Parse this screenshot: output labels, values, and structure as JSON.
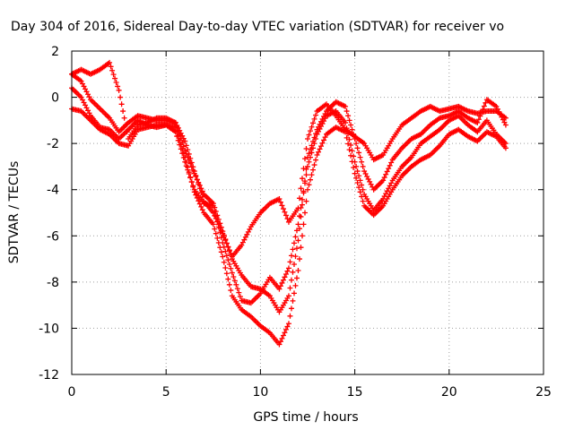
{
  "chart_data": {
    "type": "scatter",
    "title": "Day 304 of 2016, Sidereal Day-to-day VTEC variation (SDTVAR) for receiver vo",
    "xlabel": "GPS time / hours",
    "ylabel": "SDTVAR / TECUs",
    "xlim": [
      0,
      25
    ],
    "ylim": [
      -12,
      2
    ],
    "xticks": [
      0,
      5,
      10,
      15,
      20,
      25
    ],
    "xtick_labels": [
      "0",
      "5",
      "10",
      "15",
      "20",
      "25"
    ],
    "yticks": [
      -12,
      -10,
      -8,
      -6,
      -4,
      -2,
      0,
      2
    ],
    "ytick_labels": [
      "-12",
      "-10",
      "-8",
      "-6",
      "-4",
      "-2",
      "0",
      "2"
    ],
    "grid": true,
    "marker": "plus",
    "series": [
      {
        "color": "#ff0000",
        "x": [
          0.0,
          0.5,
          1.0,
          1.5,
          2.0,
          2.5,
          3.0,
          3.5,
          4.0,
          4.5,
          5.0,
          5.5,
          6.0,
          6.5,
          7.0,
          7.5,
          8.0,
          8.5,
          9.0,
          9.5,
          10.0,
          10.5,
          11.0,
          11.5,
          12.0,
          12.5,
          13.0,
          13.5,
          14.0,
          14.5,
          15.0,
          15.5,
          16.0,
          16.5,
          17.0,
          17.5,
          18.0,
          18.5,
          19.0,
          19.5,
          20.0,
          20.5,
          21.0,
          21.5,
          22.0,
          22.5,
          23.0
        ],
        "y": [
          0.4,
          0.0,
          -0.8,
          -1.3,
          -1.4,
          -1.8,
          -1.4,
          -1.0,
          -1.2,
          -1.3,
          -1.2,
          -1.5,
          -2.8,
          -4.0,
          -4.6,
          -4.7,
          -6.3,
          -7.6,
          -8.8,
          -8.9,
          -8.5,
          -7.8,
          -8.3,
          -7.4,
          -5.5,
          -3.0,
          -1.6,
          -0.8,
          -0.6,
          -1.1,
          -2.8,
          -4.2,
          -4.9,
          -4.4,
          -3.6,
          -3.0,
          -2.6,
          -2.0,
          -1.7,
          -1.4,
          -1.0,
          -0.8,
          -1.2,
          -1.5,
          -1.0,
          -1.6,
          -2.0
        ]
      },
      {
        "color": "#ff0000",
        "x": [
          0.0,
          0.5,
          1.0,
          1.5,
          2.0,
          2.5,
          3.0,
          3.5,
          4.0,
          4.5,
          5.0,
          5.5,
          6.0,
          6.5,
          7.0,
          7.5,
          8.0,
          8.5,
          9.0,
          9.5,
          10.0,
          10.5,
          11.0,
          11.5,
          12.0,
          12.5,
          13.0,
          13.5,
          14.0,
          14.5,
          15.0,
          15.5,
          16.0,
          16.5,
          17.0,
          17.5,
          18.0,
          18.5,
          19.0,
          19.5,
          20.0,
          20.5,
          21.0,
          21.5,
          22.0,
          22.5,
          23.0
        ],
        "y": [
          1.0,
          1.2,
          1.0,
          1.2,
          1.5,
          0.3,
          -1.8,
          -1.2,
          -1.1,
          -0.9,
          -0.9,
          -1.1,
          -2.3,
          -3.3,
          -4.2,
          -4.6,
          -5.8,
          -7.0,
          -7.7,
          -8.2,
          -8.3,
          -8.6,
          -9.3,
          -8.6,
          -6.2,
          -2.6,
          -1.4,
          -0.6,
          -0.2,
          -0.4,
          -1.8,
          -3.2,
          -4.0,
          -3.6,
          -2.7,
          -2.2,
          -1.8,
          -1.6,
          -1.2,
          -0.9,
          -0.8,
          -0.6,
          -0.9,
          -1.1,
          -0.1,
          -0.4,
          -1.2
        ]
      },
      {
        "color": "#ff0000",
        "x": [
          0.0,
          0.5,
          1.0,
          1.5,
          2.0,
          2.5,
          3.0,
          3.5,
          4.0,
          4.5,
          5.0,
          5.5,
          6.0,
          6.5,
          7.0,
          7.5,
          8.0,
          8.5,
          9.0,
          9.5,
          10.0,
          10.5,
          11.0,
          11.5,
          12.0,
          12.5,
          13.0,
          13.5,
          14.0,
          14.5,
          15.0,
          15.5,
          16.0,
          16.5,
          17.0,
          17.5,
          18.0,
          18.5,
          19.0,
          19.5,
          20.0,
          20.5,
          21.0,
          21.5,
          22.0,
          22.5,
          23.0
        ],
        "y": [
          -0.5,
          -0.6,
          -1.0,
          -1.4,
          -1.6,
          -2.0,
          -2.1,
          -1.4,
          -1.3,
          -1.2,
          -1.2,
          -1.3,
          -2.6,
          -4.1,
          -5.0,
          -5.5,
          -6.9,
          -8.6,
          -9.2,
          -9.5,
          -9.9,
          -10.2,
          -10.7,
          -9.8,
          -7.5,
          -4.0,
          -2.5,
          -1.6,
          -1.3,
          -1.5,
          -3.3,
          -4.7,
          -5.1,
          -4.7,
          -4.0,
          -3.4,
          -3.0,
          -2.7,
          -2.5,
          -2.1,
          -1.6,
          -1.4,
          -1.7,
          -1.9,
          -1.5,
          -1.7,
          -2.2
        ]
      },
      {
        "color": "#ff0000",
        "x": [
          0.0,
          0.5,
          1.0,
          1.5,
          2.0,
          2.5,
          3.0,
          3.5,
          4.0,
          4.5,
          5.0,
          5.5,
          6.0,
          6.5,
          7.0,
          7.5,
          8.0,
          8.5,
          9.0,
          9.5,
          10.0,
          10.5,
          11.0,
          11.5,
          12.0,
          12.5,
          13.0,
          13.5,
          14.0,
          14.5,
          15.0,
          15.5,
          16.0,
          16.5,
          17.0,
          17.5,
          18.0,
          18.5,
          19.0,
          19.5,
          20.0,
          20.5,
          21.0,
          21.5,
          22.0,
          22.5,
          23.0
        ],
        "y": [
          1.0,
          0.7,
          -0.1,
          -0.5,
          -0.9,
          -1.5,
          -1.1,
          -0.8,
          -0.9,
          -1.0,
          -1.0,
          -1.1,
          -1.9,
          -3.2,
          -4.5,
          -5.0,
          -5.9,
          -6.9,
          -6.4,
          -5.6,
          -5.0,
          -4.6,
          -4.4,
          -5.4,
          -4.8,
          -1.8,
          -0.6,
          -0.3,
          -0.8,
          -1.4,
          -1.7,
          -2.0,
          -2.7,
          -2.5,
          -1.8,
          -1.2,
          -0.9,
          -0.6,
          -0.4,
          -0.6,
          -0.5,
          -0.4,
          -0.6,
          -0.7,
          -0.6,
          -0.6,
          -0.9
        ]
      }
    ]
  }
}
